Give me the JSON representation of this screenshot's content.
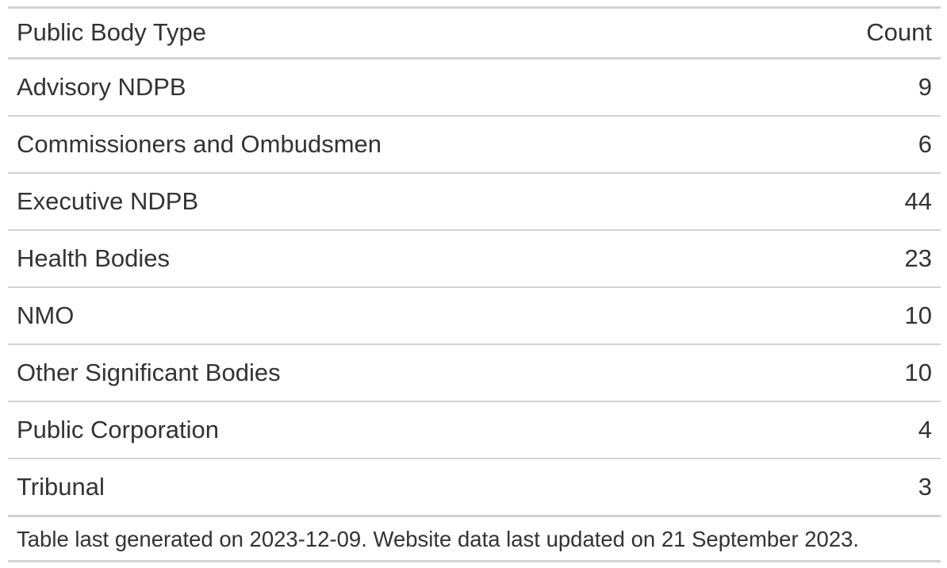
{
  "table": {
    "headers": {
      "type": "Public Body Type",
      "count": "Count"
    },
    "rows": [
      {
        "type": "Advisory NDPB",
        "count": "9"
      },
      {
        "type": "Commissioners and Ombudsmen",
        "count": "6"
      },
      {
        "type": "Executive NDPB",
        "count": "44"
      },
      {
        "type": "Health Bodies",
        "count": "23"
      },
      {
        "type": "NMO",
        "count": "10"
      },
      {
        "type": "Other Significant Bodies",
        "count": "10"
      },
      {
        "type": "Public Corporation",
        "count": "4"
      },
      {
        "type": "Tribunal",
        "count": "3"
      }
    ],
    "footnote": "Table last generated on 2023-12-09. Website data last updated on 21 September 2023."
  },
  "colors": {
    "text": "#333333",
    "rule": "#d3d3d3",
    "background": "#ffffff"
  }
}
